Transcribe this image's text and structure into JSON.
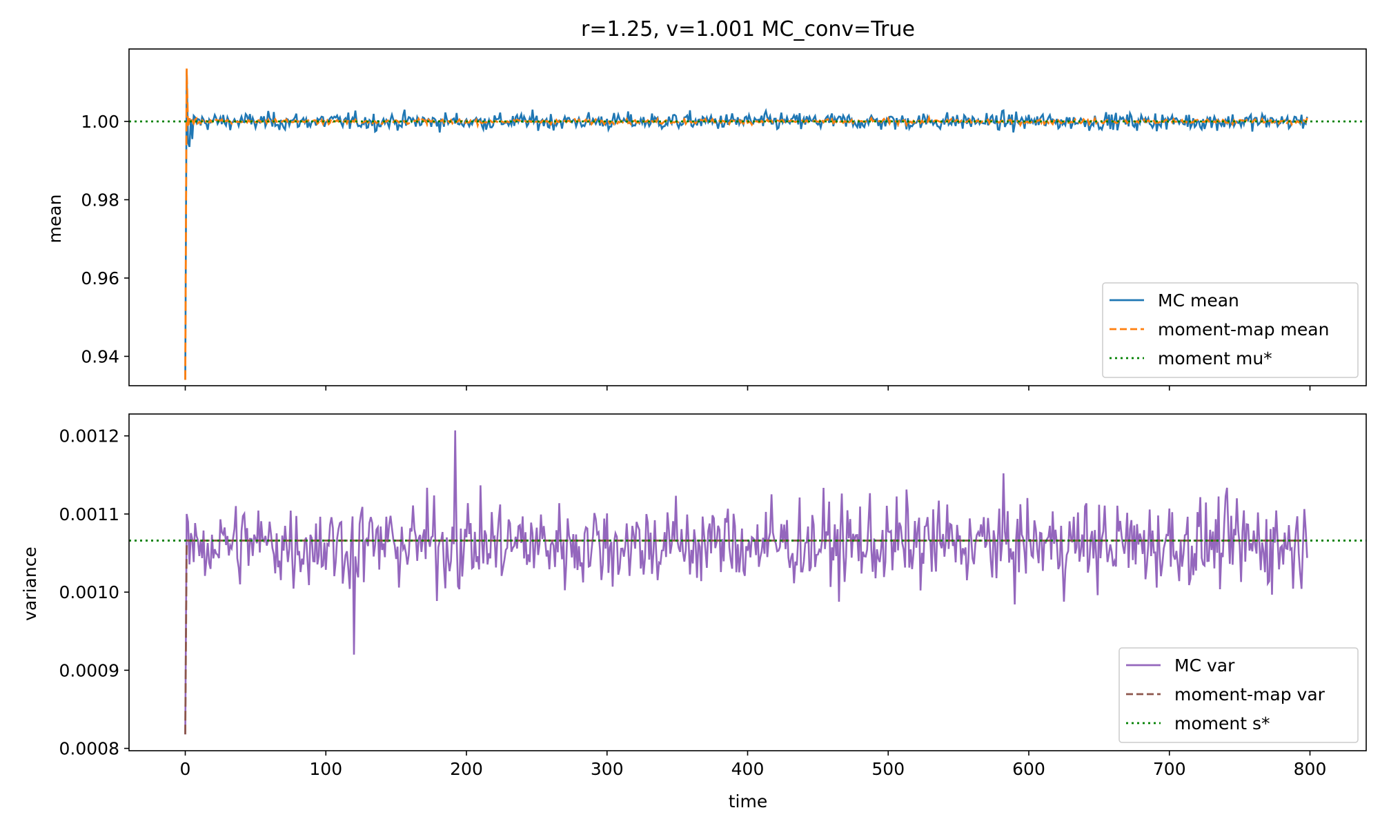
{
  "chart_data": {
    "title": "r=1.25, v=1.001   MC_conv=True",
    "xlabel": "time",
    "xlim": [
      -40,
      840
    ],
    "xticks": [
      0,
      100,
      200,
      300,
      400,
      500,
      600,
      700,
      800
    ],
    "x_max": 800,
    "panels": [
      {
        "type": "line",
        "ylabel": "mean",
        "ylim": [
          0.9325,
          1.0185
        ],
        "yticks": [
          0.94,
          0.96,
          0.98,
          1.0
        ],
        "ytick_labels": [
          "0.94",
          "0.96",
          "0.98",
          "1.00"
        ],
        "legend_position": "lower-right",
        "series": [
          {
            "name": "MC mean",
            "color": "#1f77b4",
            "style": "solid",
            "start": 0.934,
            "spike": 1.013,
            "settle": 0.9945,
            "level": 1.0,
            "noise": 0.0011,
            "max_peak": 1.003,
            "min_trough": 0.9967
          },
          {
            "name": "moment-map mean",
            "color": "#ff7f0e",
            "style": "dashed",
            "start": 0.934,
            "spike": 1.0135,
            "settle": 0.9985,
            "level": 1.0,
            "noise": 0.0003
          },
          {
            "name": "moment mu*",
            "color": "#008000",
            "style": "dotted",
            "constant": 1.0
          }
        ]
      },
      {
        "type": "line",
        "ylabel": "variance",
        "ylim": [
          0.000797,
          0.001228
        ],
        "yticks": [
          0.0008,
          0.0009,
          0.001,
          0.0011,
          0.0012
        ],
        "ytick_labels": [
          "0.0008",
          "0.0009",
          "0.0010",
          "0.0011",
          "0.0012"
        ],
        "legend_position": "lower-right",
        "series": [
          {
            "name": "MC var",
            "color": "#9467bd",
            "style": "solid",
            "start": 0.000818,
            "level": 0.001062,
            "noise": 2.8e-05,
            "max_peak": 0.001207,
            "min_trough": 0.00092
          },
          {
            "name": "moment-map var",
            "color": "#8c564b",
            "style": "dashed",
            "start": 0.000818,
            "level": 0.001066
          },
          {
            "name": "moment s*",
            "color": "#008000",
            "style": "dotted",
            "constant": 0.001066
          }
        ]
      }
    ]
  }
}
